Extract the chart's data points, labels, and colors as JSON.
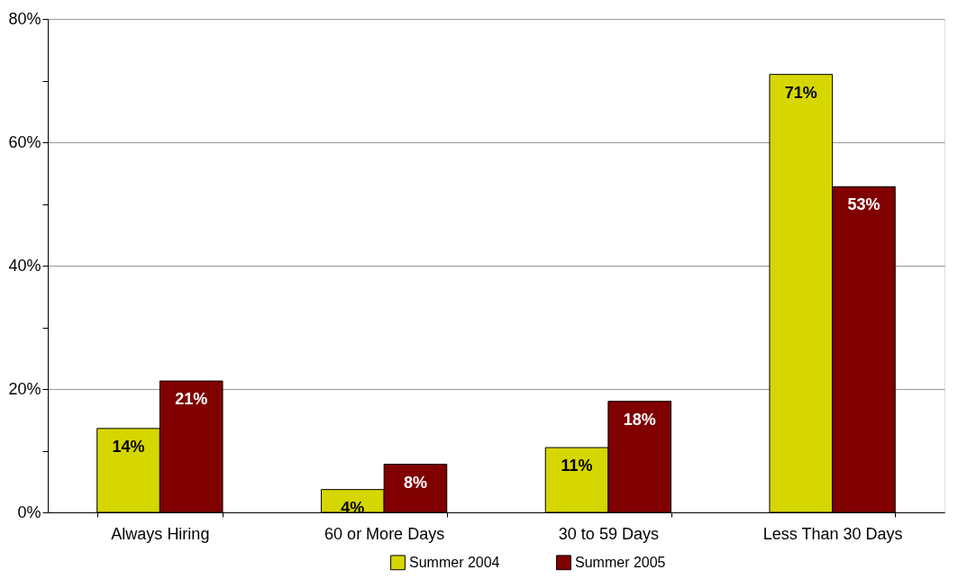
{
  "chart_data": {
    "type": "bar",
    "categories": [
      "Always Hiring",
      "60 or More Days",
      "30 to 59 Days",
      "Less Than 30 Days"
    ],
    "series": [
      {
        "name": "Summer 2004",
        "color": "#d6d600",
        "values": [
          13.6,
          3.7,
          10.5,
          71
        ],
        "value_labels": [
          "14%",
          "4%",
          "11%",
          "71%"
        ]
      },
      {
        "name": "Summer 2005",
        "color": "#800000",
        "values": [
          21.3,
          7.8,
          18,
          52.8
        ],
        "value_labels": [
          "21%",
          "8%",
          "18%",
          "53%"
        ]
      }
    ],
    "ylim": [
      0,
      80
    ],
    "yticks": [
      {
        "value": 0,
        "label": "0%"
      },
      {
        "value": 10,
        "label": null
      },
      {
        "value": 20,
        "label": "20%"
      },
      {
        "value": 30,
        "label": null
      },
      {
        "value": 40,
        "label": "40%"
      },
      {
        "value": 50,
        "label": null
      },
      {
        "value": 60,
        "label": "60%"
      },
      {
        "value": 70,
        "label": null
      },
      {
        "value": 80,
        "label": "80%"
      }
    ],
    "grid": "y",
    "legend": "bottom"
  }
}
